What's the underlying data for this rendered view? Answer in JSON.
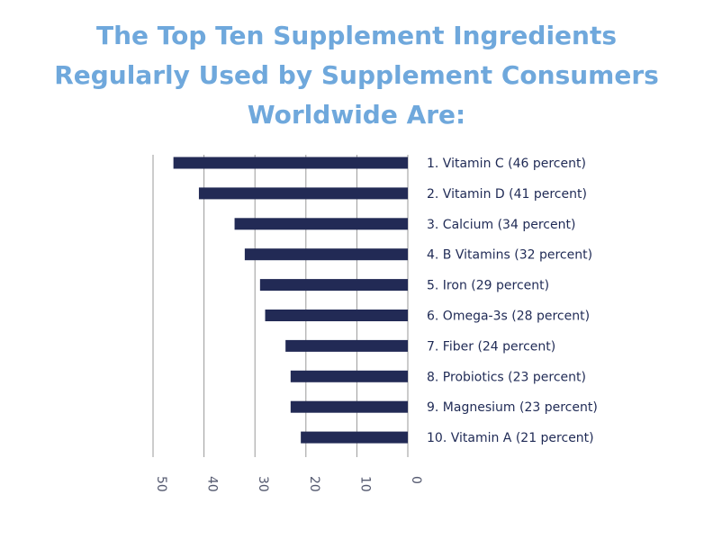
{
  "chart_data": {
    "type": "bar",
    "orientation": "horizontal",
    "title_lines": [
      "The Top Ten Supplement Ingredients",
      "Regularly Used by Supplement Consumers",
      "Worldwide Are:"
    ],
    "categories": [
      "1. Vitamin C (46 percent)",
      "2. Vitamin D (41 percent)",
      "3. Calcium (34 percent)",
      "4. B Vitamins (32 percent)",
      "5. Iron (29 percent)",
      "6. Omega-3s (28 percent)",
      "7. Fiber (24 percent)",
      "8. Probiotics (23 percent)",
      "9. Magnesium (23 percent)",
      "10. Vitamin A (21 percent)"
    ],
    "values": [
      46,
      41,
      34,
      32,
      29,
      28,
      24,
      23,
      23,
      21
    ],
    "xlim": [
      0,
      50
    ],
    "x_axis_reversed": true,
    "tick_values": [
      50,
      40,
      30,
      20,
      10,
      0
    ],
    "tick_labels": [
      "50",
      "40",
      "30",
      "20",
      "10",
      "0"
    ],
    "grid": true,
    "legend": "none",
    "colors": {
      "bar": "#222a55",
      "title": "#6fa8dc",
      "grid": "#9a9a9a",
      "label": "#1f2a55"
    }
  }
}
